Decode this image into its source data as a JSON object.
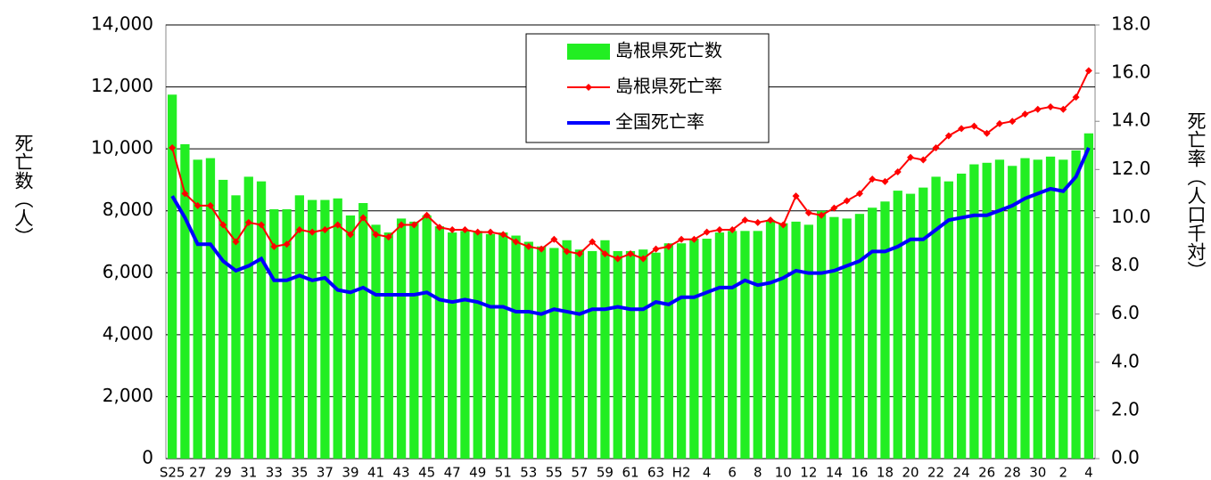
{
  "chart_data": {
    "type": "bar",
    "y_label": "死亡数（人）",
    "y2_label": "死亡率（人口千対）",
    "categories": [
      "S25",
      null,
      "27",
      null,
      "29",
      null,
      "31",
      null,
      "33",
      null,
      "35",
      null,
      "37",
      null,
      "39",
      null,
      "41",
      null,
      "43",
      null,
      "45",
      null,
      "47",
      null,
      "49",
      null,
      "51",
      null,
      "53",
      null,
      "55",
      null,
      "57",
      null,
      "59",
      null,
      "61",
      null,
      "63",
      null,
      "H2",
      null,
      "4",
      null,
      "6",
      null,
      "8",
      null,
      "10",
      null,
      "12",
      null,
      "14",
      null,
      "16",
      null,
      "18",
      null,
      "20",
      null,
      "22",
      null,
      "24",
      null,
      "26",
      null,
      "28",
      null,
      "30",
      null,
      "2",
      null,
      "4"
    ],
    "series": [
      {
        "name": "島根県死亡数",
        "type": "bar",
        "color": "#22ee22",
        "axis": "y",
        "values": [
          11750,
          10150,
          9650,
          9700,
          9000,
          8500,
          9100,
          8950,
          8050,
          8050,
          8500,
          8350,
          8350,
          8400,
          7850,
          8250,
          7550,
          7300,
          7750,
          7650,
          7850,
          7500,
          7300,
          7350,
          7350,
          7250,
          7300,
          7200,
          7000,
          6850,
          6800,
          7050,
          6750,
          6700,
          7050,
          6700,
          6700,
          6750,
          6650,
          6950,
          6950,
          7100,
          7100,
          7300,
          7350,
          7350,
          7350,
          7700,
          7600,
          7650,
          7550,
          8000,
          7800,
          7750,
          7900,
          8100,
          8300,
          8650,
          8550,
          8750,
          9100,
          8950,
          9200,
          9500,
          9550,
          9650,
          9450,
          9700,
          9650,
          9750,
          9650,
          9950,
          10500
        ]
      },
      {
        "name": "島根県死亡率",
        "type": "line",
        "color": "#ff0000",
        "axis": "y2",
        "values": [
          12.9,
          11.0,
          10.5,
          10.5,
          9.7,
          9.0,
          9.8,
          9.7,
          8.8,
          8.9,
          9.5,
          9.4,
          9.5,
          9.7,
          9.3,
          10.0,
          9.3,
          9.2,
          9.7,
          9.7,
          10.1,
          9.6,
          9.5,
          9.5,
          9.4,
          9.4,
          9.3,
          9.0,
          8.8,
          8.7,
          9.1,
          8.6,
          8.5,
          9.0,
          8.5,
          8.3,
          8.5,
          8.3,
          8.7,
          8.8,
          9.1,
          9.1,
          9.4,
          9.5,
          9.5,
          9.9,
          9.8,
          9.9,
          9.7,
          10.9,
          10.2,
          10.1,
          10.4,
          10.7,
          11.0,
          11.6,
          11.5,
          11.9,
          12.5,
          12.4,
          12.9,
          13.4,
          13.7,
          13.8,
          13.5,
          13.9,
          14.0,
          14.3,
          14.5,
          14.6,
          14.5,
          15.0,
          16.1
        ]
      },
      {
        "name": "全国死亡率",
        "type": "line",
        "color": "#0000ff",
        "axis": "y2",
        "values": [
          10.9,
          10.0,
          8.9,
          8.9,
          8.2,
          7.8,
          8.0,
          8.3,
          7.4,
          7.4,
          7.6,
          7.4,
          7.5,
          7.0,
          6.9,
          7.1,
          6.8,
          6.8,
          6.8,
          6.8,
          6.9,
          6.6,
          6.5,
          6.6,
          6.5,
          6.3,
          6.3,
          6.1,
          6.1,
          6.0,
          6.2,
          6.1,
          6.0,
          6.2,
          6.2,
          6.3,
          6.2,
          6.2,
          6.5,
          6.4,
          6.7,
          6.7,
          6.9,
          7.1,
          7.1,
          7.4,
          7.2,
          7.3,
          7.5,
          7.8,
          7.7,
          7.7,
          7.8,
          8.0,
          8.2,
          8.6,
          8.6,
          8.8,
          9.1,
          9.1,
          9.5,
          9.9,
          10.0,
          10.1,
          10.1,
          10.3,
          10.5,
          10.8,
          11.0,
          11.2,
          11.1,
          11.7,
          12.9
        ]
      }
    ],
    "ylim": [
      0,
      14000
    ],
    "yticks": [
      0,
      {
        "value": 2000,
        "label": "2,000"
      },
      {
        "value": 4000,
        "label": "4,000"
      },
      {
        "value": 6000,
        "label": "6,000"
      },
      {
        "value": 8000,
        "label": "8,000"
      },
      {
        "value": 10000,
        "label": "10,000"
      },
      {
        "value": 12000,
        "label": "12,000"
      },
      {
        "value": 14000,
        "label": "14,000"
      }
    ],
    "y2lim": [
      0,
      18
    ],
    "y2ticks": [
      {
        "value": 0,
        "label": "0.0"
      },
      {
        "value": 2,
        "label": "2.0"
      },
      {
        "value": 4,
        "label": "4.0"
      },
      {
        "value": 6,
        "label": "6.0"
      },
      {
        "value": 8,
        "label": "8.0"
      },
      {
        "value": 10,
        "label": "10.0"
      },
      {
        "value": 12,
        "label": "12.0"
      },
      {
        "value": 14,
        "label": "14.0"
      },
      {
        "value": 16,
        "label": "16.0"
      },
      {
        "value": 18,
        "label": "18.0"
      }
    ],
    "grid": true,
    "legend": "top"
  }
}
